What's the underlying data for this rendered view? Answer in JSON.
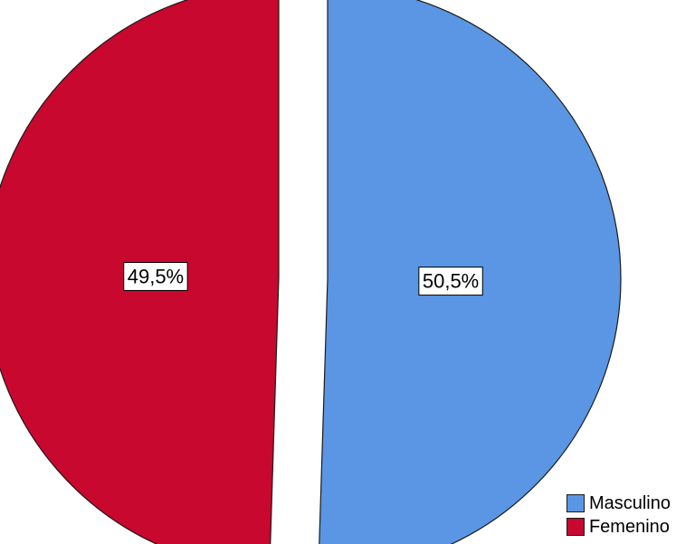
{
  "chart_data": {
    "type": "pie",
    "slices": [
      {
        "label": "Masculino",
        "value": 50.5,
        "display": "50,5%",
        "color": "#5a96e3"
      },
      {
        "label": "Femenino",
        "value": 49.5,
        "display": "49,5%",
        "color": "#c8082e"
      }
    ],
    "legend": {
      "placement": "bottom-right",
      "entries": [
        {
          "label": "Masculino",
          "color": "#5a96e3"
        },
        {
          "label": "Femenino",
          "color": "#c8082e"
        }
      ]
    },
    "exploded": true,
    "start_angle": "12 o'clock, clockwise"
  }
}
